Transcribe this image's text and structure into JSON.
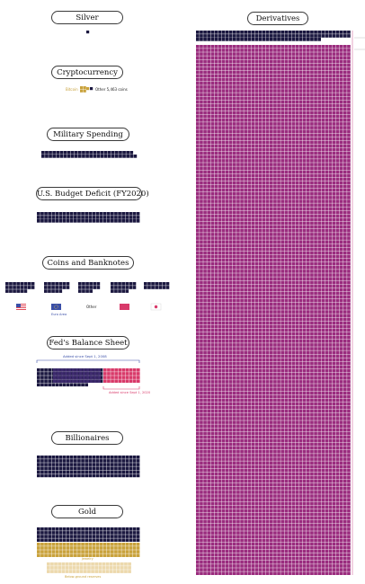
{
  "sections": {
    "silver": "Silver",
    "crypto": "Cryptocurrency",
    "military": "Military Spending",
    "deficit": "U.S. Budget Deficit (FY2020)",
    "coins": "Coins and Banknotes",
    "fed": "Fed's Balance Sheet",
    "billionaires": "Billionaires",
    "gold": "Gold",
    "derivatives": "Derivatives"
  },
  "chart_data": {
    "type": "waffle",
    "crypto_legend": {
      "bitcoin": "Bitcoin",
      "other": "Other 5,463 coins"
    },
    "coins_legend": {
      "other": "Other",
      "euro": "Euro Area"
    },
    "fed_annotations": {
      "before": "Added since Sept 1, 2008",
      "after": "Added since Sept 1, 2020"
    },
    "gold_annotations": {
      "mined": "Jewelry",
      "reserves": "Below-ground reserves"
    },
    "colors": {
      "navy": "#1b1840",
      "purple": "#3d2a6e",
      "pink": "#d83a6a",
      "gold": "#c9a23c",
      "goldlight": "#ecd9ad",
      "magenta": "#9a2c7e"
    }
  }
}
